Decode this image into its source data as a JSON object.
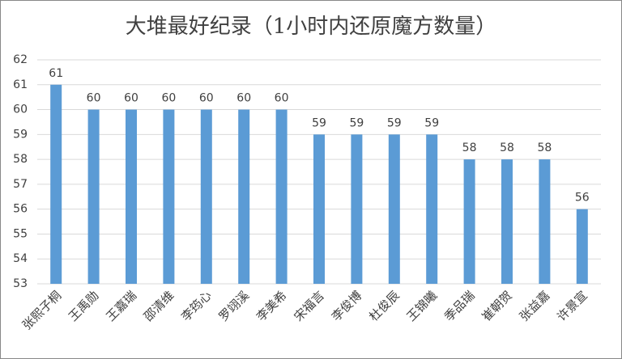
{
  "chart_data": {
    "type": "bar",
    "title": "大堆最好纪录（1小时内还原魔方数量）",
    "categories": [
      "张熙子桐",
      "王禹勋",
      "王嘉瑞",
      "邵清维",
      "李筠心",
      "罗翊溪",
      "李美希",
      "宋福言",
      "李俊博",
      "杜俊辰",
      "王锦曦",
      "季品瑞",
      "崔朝贺",
      "张益嘉",
      "许景宣"
    ],
    "values": [
      61,
      60,
      60,
      60,
      60,
      60,
      60,
      59,
      59,
      59,
      59,
      58,
      58,
      58,
      56
    ],
    "color": "#5b9bd5",
    "ylim": [
      53,
      62
    ],
    "yticks": [
      53,
      54,
      55,
      56,
      57,
      58,
      59,
      60,
      61,
      62
    ],
    "grid": true
  }
}
